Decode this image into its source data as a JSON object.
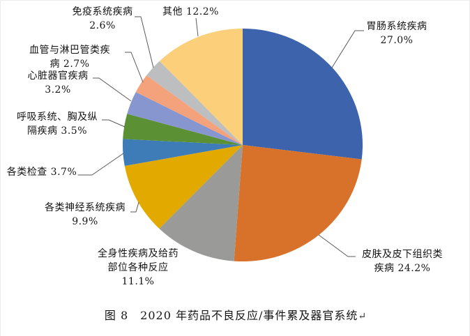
{
  "figure": {
    "caption": "图 8　2020 年药品不良反应/事件累及器官系统",
    "return_mark": "↵"
  },
  "chart_data": {
    "type": "pie",
    "title": "图 8 2020 年药品不良反应/事件累及器官系统",
    "unit": "%",
    "start_angle_deg": 0,
    "direction": "clockwise",
    "slices": [
      {
        "label": "胃肠系统疾病",
        "value": 27.0,
        "color": "#3C63AC"
      },
      {
        "label": "皮肤及皮下组织类疾病",
        "value": 24.2,
        "color": "#D8722B"
      },
      {
        "label": "全身性疾病及给药部位各种反应",
        "value": 11.1,
        "color": "#9A9A99"
      },
      {
        "label": "各类神经系统疾病",
        "value": 9.9,
        "color": "#E2AA00"
      },
      {
        "label": "各类检查",
        "value": 3.7,
        "color": "#3E7CB8"
      },
      {
        "label": "呼吸系统、胸及纵隔疾病",
        "value": 3.5,
        "color": "#5B9134"
      },
      {
        "label": "心脏器官疾病",
        "value": 3.2,
        "color": "#8796CE"
      },
      {
        "label": "血管与淋巴管类疾病",
        "value": 2.7,
        "color": "#F4A27C"
      },
      {
        "label": "免疫系统疾病",
        "value": 2.6,
        "color": "#BCBEC0"
      },
      {
        "label": "其他",
        "value": 12.2,
        "color": "#FCCF7A"
      }
    ]
  },
  "labels": [
    {
      "name": "immune-system",
      "lines": [
        "免疫系统疾病",
        "2.6%"
      ]
    },
    {
      "name": "other",
      "lines": [
        "其他 12.2%"
      ]
    },
    {
      "name": "vascular-lymphatic",
      "lines": [
        "血管与淋巴管类疾",
        "病 2.7%"
      ]
    },
    {
      "name": "cardiac",
      "lines": [
        "心脏器官疾病",
        "3.2%"
      ]
    },
    {
      "name": "respiratory",
      "lines": [
        "呼吸系统、胸及纵",
        "隔疾病 3.5%"
      ]
    },
    {
      "name": "investigations",
      "lines": [
        "各类检查 3.7%"
      ]
    },
    {
      "name": "nervous-system",
      "lines": [
        "各类神经系统疾病",
        "9.9%"
      ]
    },
    {
      "name": "general-disorders",
      "lines": [
        "全身性疾病及给药",
        "部位各种反应",
        "11.1%"
      ]
    },
    {
      "name": "gastrointestinal",
      "lines": [
        "胃肠系统疾病",
        "27.0%"
      ]
    },
    {
      "name": "skin-subcutaneous",
      "lines": [
        "皮肤及皮下组织类",
        "疾病 24.2%"
      ]
    }
  ]
}
